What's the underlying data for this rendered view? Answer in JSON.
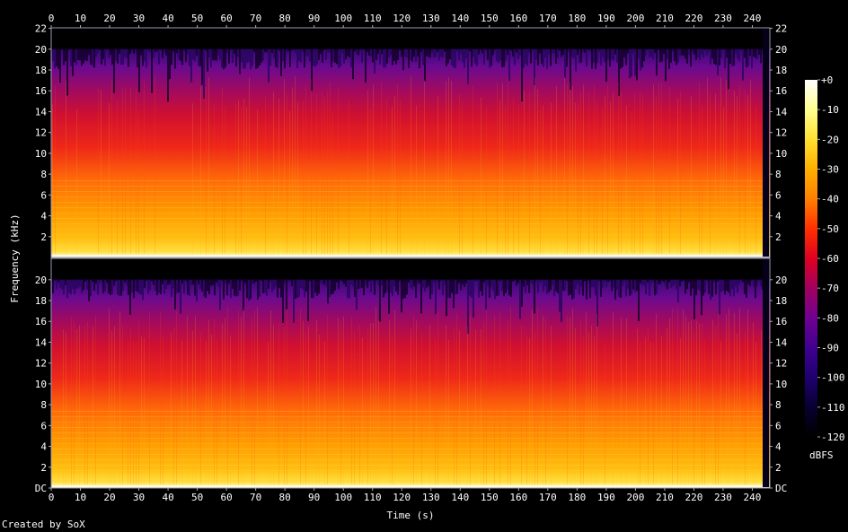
{
  "chart_data": {
    "type": "heatmap",
    "xlabel": "Time (s)",
    "ylabel": "Frequency (kHz)",
    "x_ticks": [
      0,
      10,
      20,
      30,
      40,
      50,
      60,
      70,
      80,
      90,
      100,
      110,
      120,
      130,
      140,
      150,
      160,
      170,
      180,
      190,
      200,
      210,
      220,
      230,
      240
    ],
    "xlim": [
      0,
      246
    ],
    "channels": [
      {
        "y_ticks_left": [
          "22",
          "20",
          "18",
          "16",
          "14",
          "12",
          "10",
          "8",
          "6",
          "4",
          "2"
        ],
        "y_ticks_right": [
          "22",
          "20",
          "18",
          "16",
          "14",
          "12",
          "10",
          "8",
          "6",
          "4",
          "2"
        ],
        "y_values": [
          22,
          20,
          18,
          16,
          14,
          12,
          10,
          8,
          6,
          4,
          2
        ]
      },
      {
        "y_ticks_left": [
          "20",
          "18",
          "16",
          "14",
          "12",
          "10",
          "8",
          "6",
          "4",
          "2",
          "DC"
        ],
        "y_ticks_right": [
          "20",
          "18",
          "16",
          "14",
          "12",
          "10",
          "8",
          "6",
          "4",
          "2",
          "DC"
        ],
        "y_values": [
          20,
          18,
          16,
          14,
          12,
          10,
          8,
          6,
          4,
          2,
          0
        ]
      }
    ],
    "ylim": [
      0,
      22.05
    ],
    "content_cutoff_khz": 20,
    "colorbar": {
      "label": "dBFS",
      "tick_labels": [
        "+0",
        "-10",
        "-20",
        "-30",
        "-40",
        "-50",
        "-60",
        "-70",
        "-80",
        "-90",
        "-100",
        "-110",
        "-120"
      ],
      "values": [
        0,
        -10,
        -20,
        -30,
        -40,
        -50,
        -60,
        -70,
        -80,
        -90,
        -100,
        -110,
        -120
      ],
      "colors": [
        "#ffffff",
        "#ffff90",
        "#ffe030",
        "#ffb000",
        "#ff8000",
        "#ff3000",
        "#e00020",
        "#a00060",
        "#700090",
        "#400090",
        "#200070",
        "#080030",
        "#000000"
      ]
    }
  },
  "footer": {
    "credit": "Created by SoX"
  }
}
